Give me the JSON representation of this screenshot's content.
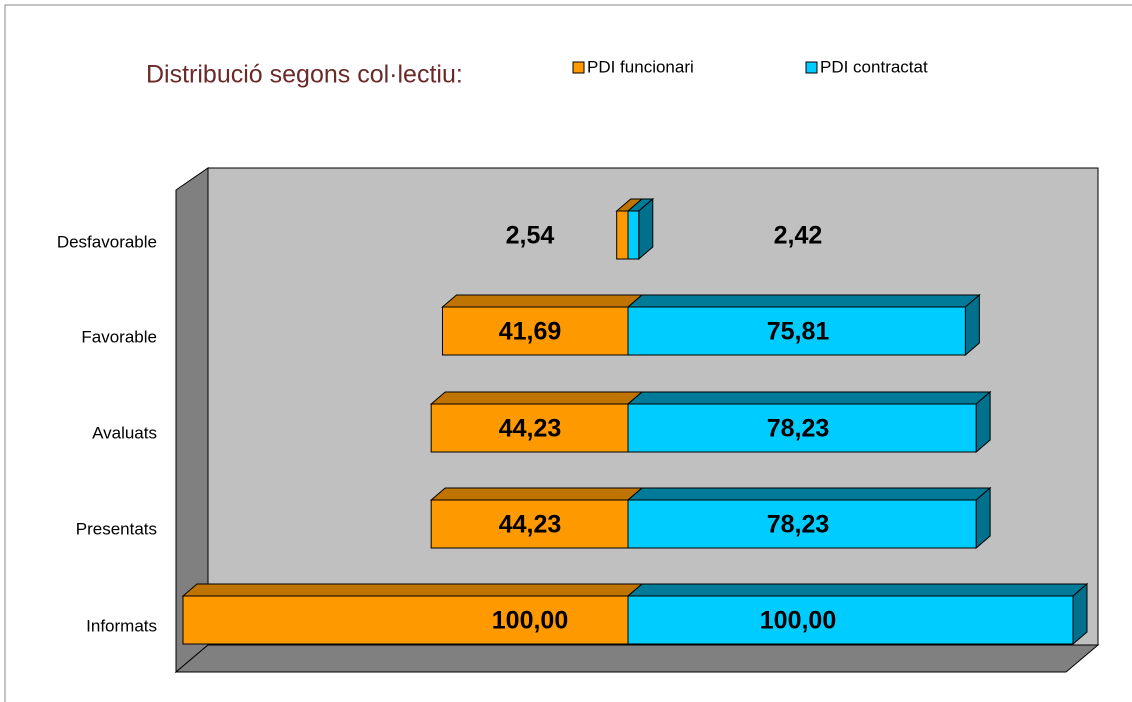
{
  "chart_data": {
    "type": "bar",
    "title": "Distribució segons col·lectiu:",
    "categories": [
      "Desfavorable",
      "Favorable",
      "Avaluats",
      "Presentats",
      "Informats"
    ],
    "series": [
      {
        "name": "PDI funcionari",
        "color": "#ff9900",
        "values": [
          2.54,
          41.69,
          44.23,
          44.23,
          100
        ],
        "value_labels": [
          "2,54",
          "41,69",
          "44,23",
          "44,23",
          "100,00"
        ]
      },
      {
        "name": "PDI contractat",
        "color": "#00ccff",
        "values": [
          2.42,
          75.81,
          78.23,
          78.23,
          100
        ],
        "value_labels": [
          "2,42",
          "75,81",
          "78,23",
          "78,23",
          "100,00"
        ]
      }
    ]
  }
}
